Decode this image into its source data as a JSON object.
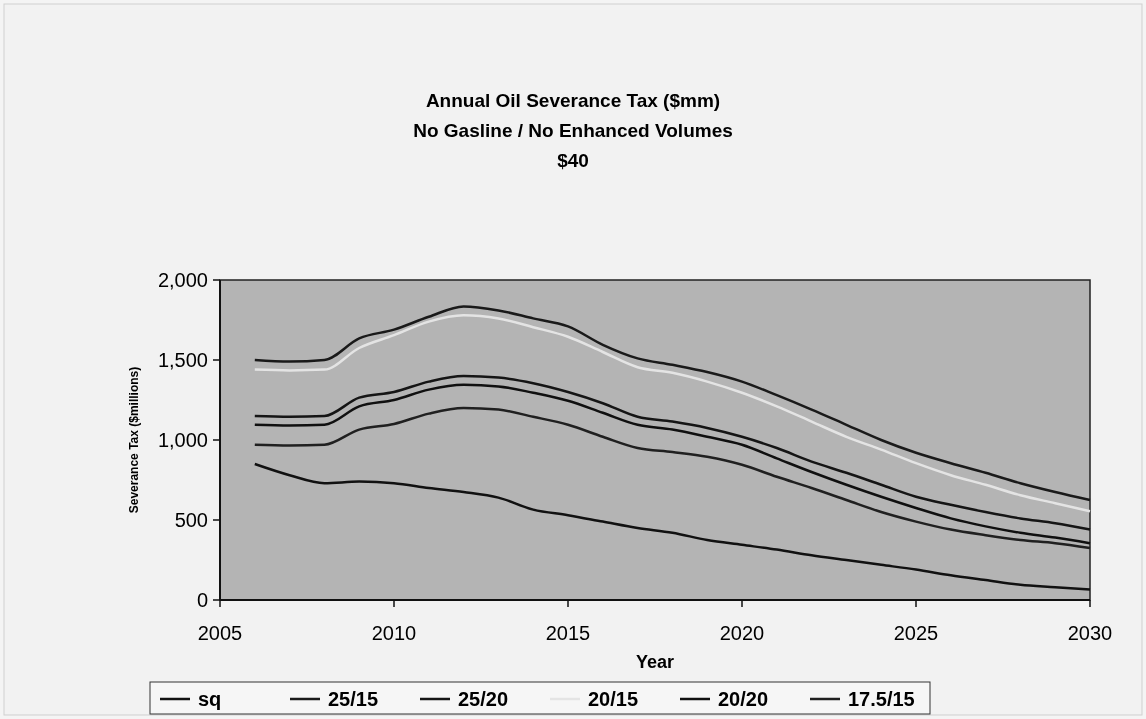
{
  "chart_data": {
    "type": "line",
    "title": "Annual Oil Severance Tax ($mm)",
    "subtitle": "No Gasline / No Enhanced Volumes\n$40",
    "xlabel": "Year",
    "ylabel": "Severance Tax ($millions)",
    "x": [
      2006,
      2007,
      2008,
      2009,
      2010,
      2011,
      2012,
      2013,
      2014,
      2015,
      2016,
      2017,
      2018,
      2019,
      2020,
      2021,
      2022,
      2023,
      2024,
      2025,
      2026,
      2027,
      2028,
      2029,
      2030
    ],
    "series": [
      {
        "name": "sq",
        "color": "#111111",
        "values": [
          850,
          780,
          730,
          740,
          730,
          700,
          675,
          640,
          565,
          530,
          490,
          450,
          420,
          375,
          345,
          315,
          280,
          250,
          220,
          190,
          155,
          125,
          95,
          80,
          65
        ]
      },
      {
        "name": "25/15",
        "color": "#1a1a1a",
        "values": [
          1500,
          1490,
          1500,
          1635,
          1690,
          1770,
          1835,
          1810,
          1760,
          1710,
          1595,
          1510,
          1470,
          1425,
          1365,
          1280,
          1190,
          1095,
          1000,
          920,
          855,
          795,
          730,
          675,
          625
        ]
      },
      {
        "name": "25/20",
        "color": "#151515",
        "values": [
          1150,
          1145,
          1150,
          1265,
          1300,
          1365,
          1400,
          1390,
          1355,
          1300,
          1230,
          1145,
          1115,
          1075,
          1020,
          950,
          865,
          795,
          720,
          645,
          595,
          550,
          510,
          480,
          440
        ]
      },
      {
        "name": "20/15",
        "color": "#e4e4e4",
        "values": [
          1440,
          1435,
          1440,
          1575,
          1655,
          1740,
          1780,
          1760,
          1705,
          1645,
          1550,
          1455,
          1420,
          1365,
          1295,
          1210,
          1115,
          1020,
          940,
          855,
          780,
          720,
          655,
          605,
          555
        ]
      },
      {
        "name": "20/20",
        "color": "#101010",
        "values": [
          1095,
          1090,
          1095,
          1210,
          1250,
          1315,
          1345,
          1335,
          1295,
          1245,
          1170,
          1095,
          1065,
          1020,
          970,
          885,
          800,
          720,
          645,
          575,
          510,
          460,
          420,
          390,
          355
        ]
      },
      {
        "name": "17.5/15",
        "color": "#202020",
        "values": [
          970,
          965,
          970,
          1065,
          1100,
          1165,
          1200,
          1190,
          1145,
          1095,
          1020,
          950,
          925,
          895,
          845,
          770,
          700,
          625,
          550,
          490,
          440,
          405,
          375,
          355,
          325
        ]
      }
    ],
    "xlim": [
      2005,
      2030
    ],
    "xticks": [
      2005,
      2010,
      2015,
      2020,
      2025,
      2030
    ],
    "ylim": [
      0,
      2000
    ],
    "yticks": [
      {
        "value": 0,
        "label": "0"
      },
      {
        "value": 500,
        "label": "500"
      },
      {
        "value": 1000,
        "label": "1,000"
      },
      {
        "value": 1500,
        "label": "1,500"
      },
      {
        "value": 2000,
        "label": "2,000"
      }
    ],
    "grid": false,
    "legend": "bottom",
    "marker": "none",
    "line_style": "solid"
  }
}
